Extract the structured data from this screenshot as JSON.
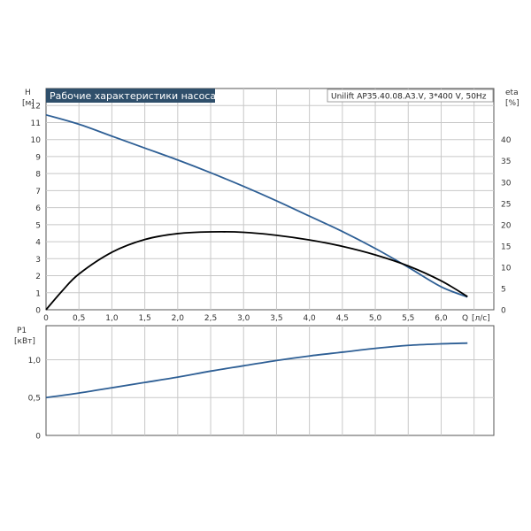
{
  "colors": {
    "head_curve": "#2e5f95",
    "eta_curve": "#000000",
    "power_curve": "#2e5f95",
    "title_bg": "#2f4f6b",
    "grid": "#c8c8c8",
    "frame": "#555555"
  },
  "chart_data": [
    {
      "type": "line",
      "title": "Рабочие характеристики насоса",
      "pump_label": "Unilift AP35.40.08.A3.V, 3*400 V, 50Hz",
      "ylabel": "H",
      "yunit": "[м]",
      "ylabel_right": "eta",
      "yunit_right": "[%]",
      "xlabel": "Q",
      "xunit": "[л/с]",
      "xlim": [
        0,
        6.8
      ],
      "ylim": [
        0,
        13
      ],
      "ylim_right": [
        0,
        52
      ],
      "grid": true,
      "x_ticks": [
        0,
        0.5,
        1.0,
        1.5,
        2.0,
        2.5,
        3.0,
        3.5,
        4.0,
        4.5,
        5.0,
        5.5,
        6.0
      ],
      "x_tick_labels": [
        "0",
        "0,5",
        "1,0",
        "1,5",
        "2,0",
        "2,5",
        "3,0",
        "3,5",
        "4,0",
        "4,5",
        "5,0",
        "5,5",
        "6,0"
      ],
      "y_ticks": [
        0,
        1,
        2,
        3,
        4,
        5,
        6,
        7,
        8,
        9,
        10,
        11,
        12
      ],
      "y_tick_labels": [
        "0",
        "1",
        "2",
        "3",
        "4",
        "5",
        "6",
        "7",
        "8",
        "9",
        "10",
        "11",
        "12"
      ],
      "y_right_ticks": [
        0,
        5,
        10,
        15,
        20,
        25,
        30,
        35,
        40
      ],
      "y_right_tick_labels": [
        "0",
        "5",
        "10",
        "15",
        "20",
        "25",
        "30",
        "35",
        "40"
      ],
      "series": [
        {
          "axis": "left",
          "x": [
            0,
            0.5,
            1.0,
            1.5,
            2.0,
            2.5,
            3.0,
            3.5,
            4.0,
            4.5,
            5.0,
            5.5,
            6.0,
            6.4
          ],
          "values": [
            11.45,
            10.9,
            10.2,
            9.5,
            8.8,
            8.05,
            7.25,
            6.4,
            5.5,
            4.6,
            3.6,
            2.5,
            1.35,
            0.75
          ]
        },
        {
          "axis": "right",
          "x": [
            0,
            0.25,
            0.5,
            1.0,
            1.5,
            2.0,
            2.5,
            3.0,
            3.5,
            4.0,
            4.5,
            5.0,
            5.5,
            6.0,
            6.4
          ],
          "values": [
            0,
            4.5,
            8.4,
            13.5,
            16.5,
            17.9,
            18.3,
            18.2,
            17.5,
            16.4,
            14.9,
            12.9,
            10.3,
            6.8,
            3.1
          ]
        }
      ]
    },
    {
      "type": "line",
      "ylabel": "P1",
      "yunit": "[кВт]",
      "xlim": [
        0,
        6.8
      ],
      "ylim": [
        0,
        1.45
      ],
      "grid": true,
      "y_ticks": [
        0,
        0.5,
        1.0
      ],
      "y_tick_labels": [
        "0",
        "0,5",
        "1,0"
      ],
      "series": [
        {
          "x": [
            0,
            0.5,
            1.0,
            1.5,
            2.0,
            2.5,
            3.0,
            3.5,
            4.0,
            4.5,
            5.0,
            5.5,
            6.0,
            6.4
          ],
          "values": [
            0.5,
            0.56,
            0.63,
            0.7,
            0.77,
            0.85,
            0.92,
            0.99,
            1.05,
            1.1,
            1.15,
            1.19,
            1.21,
            1.22
          ]
        }
      ]
    }
  ]
}
